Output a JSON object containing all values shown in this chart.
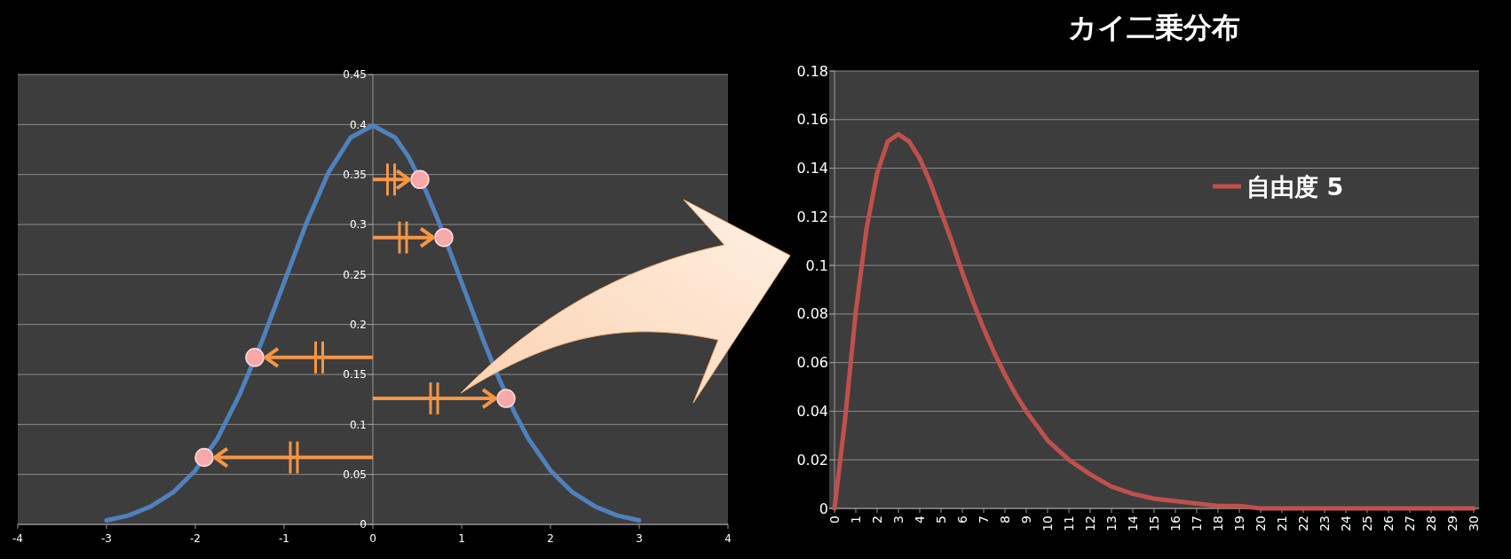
{
  "chart_data": [
    {
      "type": "line",
      "xlim": [
        -4,
        4
      ],
      "xticks": [
        -4,
        -3,
        -2,
        -1,
        0,
        1,
        2,
        3,
        4
      ],
      "ylim": [
        0,
        0.45
      ],
      "yticks": [
        0,
        0.05,
        0.1,
        0.15,
        0.2,
        0.25,
        0.3,
        0.35,
        0.4,
        0.45
      ],
      "grid": "y",
      "series": [
        {
          "color": "#4f81bd",
          "x": [
            -3,
            -2.75,
            -2.5,
            -2.25,
            -2,
            -1.75,
            -1.5,
            -1.25,
            -1,
            -0.75,
            -0.5,
            -0.25,
            0,
            0.25,
            0.4,
            0.6,
            0.75,
            1,
            1.25,
            1.4,
            1.6,
            1.75,
            2,
            2.25,
            2.5,
            2.75,
            3
          ],
          "values": [
            0.004,
            0.009,
            0.018,
            0.032,
            0.054,
            0.086,
            0.13,
            0.183,
            0.242,
            0.301,
            0.352,
            0.387,
            0.399,
            0.387,
            0.368,
            0.333,
            0.301,
            0.242,
            0.183,
            0.15,
            0.111,
            0.086,
            0.054,
            0.032,
            0.018,
            0.009,
            0.004
          ]
        },
        {
          "type": "scatter",
          "color": "#f7a8a8",
          "marker": "circle",
          "x": [
            0.53,
            0.8,
            -1.33,
            1.5,
            -1.9
          ],
          "values": [
            0.345,
            0.287,
            0.167,
            0.126,
            0.067
          ]
        }
      ]
    },
    {
      "type": "line",
      "title": "カイ二乗分布",
      "xlim": [
        -0.25,
        30.25
      ],
      "xticks": [
        0,
        1,
        2,
        3,
        4,
        5,
        6,
        7,
        8,
        9,
        10,
        11,
        12,
        13,
        14,
        15,
        16,
        17,
        18,
        19,
        20,
        21,
        22,
        23,
        24,
        25,
        26,
        27,
        28,
        29,
        30
      ],
      "ylim": [
        0,
        0.18
      ],
      "yticks": [
        0,
        0.02,
        0.04,
        0.06,
        0.08,
        0.1,
        0.12,
        0.14,
        0.16,
        0.18
      ],
      "grid": "y",
      "legend": "top right",
      "x": [
        0,
        0.5,
        1,
        1.5,
        2,
        2.5,
        3,
        3.5,
        4,
        4.5,
        5,
        5.5,
        6,
        6.5,
        7,
        7.5,
        8,
        8.5,
        9,
        9.5,
        10,
        11,
        12,
        13,
        14,
        15,
        16,
        17,
        18,
        19,
        20,
        22,
        24,
        26,
        28,
        30
      ],
      "series": [
        {
          "name": "自由度 5",
          "color": "#c0504d",
          "values": [
            0,
            0.037,
            0.081,
            0.115,
            0.138,
            0.151,
            0.154,
            0.151,
            0.144,
            0.134,
            0.122,
            0.11,
            0.097,
            0.085,
            0.074,
            0.064,
            0.055,
            0.047,
            0.04,
            0.034,
            0.028,
            0.02,
            0.014,
            0.009,
            0.006,
            0.004,
            0.003,
            0.002,
            0.001,
            0.001,
            0,
            0,
            0,
            0,
            0,
            0
          ]
        }
      ]
    }
  ]
}
